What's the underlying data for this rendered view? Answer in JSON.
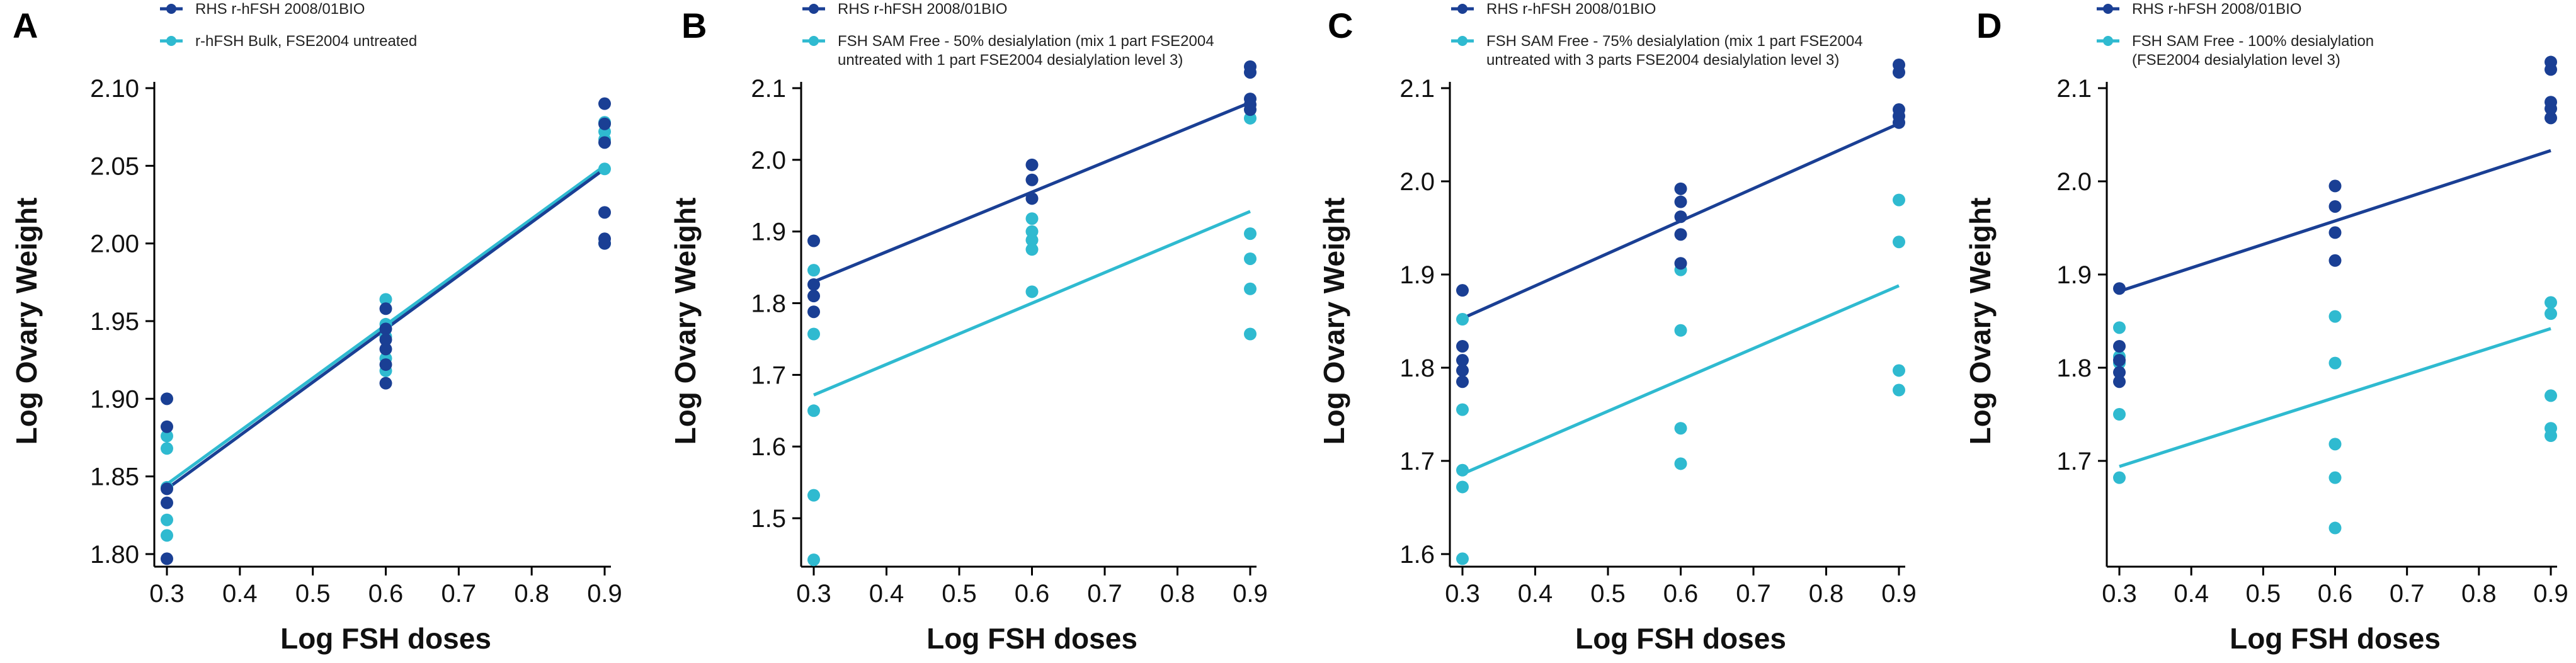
{
  "colors": {
    "rhs": "#1a3f94",
    "test": "#2fbad0"
  },
  "chart_data": [
    {
      "panel": "A",
      "type": "scatter",
      "xlabel": "Log FSH doses",
      "ylabel": "Log Ovary Weight",
      "xlim": [
        0.3,
        0.9
      ],
      "ylim": [
        1.8,
        2.1
      ],
      "xticks": [
        "0.3",
        "0.4",
        "0.5",
        "0.6",
        "0.7",
        "0.8",
        "0.9"
      ],
      "yticks": [
        "1.80",
        "1.85",
        "1.90",
        "1.95",
        "2.00",
        "2.05",
        "2.10"
      ],
      "legend": [
        "RHS r-hFSH 2008/01BIO",
        "r-hFSH Bulk, FSE2004 untreated"
      ],
      "series": [
        {
          "name": "RHS r-hFSH 2008/01BIO",
          "points": [
            [
              0.3,
              1.9
            ],
            [
              0.3,
              1.882
            ],
            [
              0.3,
              1.842
            ],
            [
              0.3,
              1.833
            ],
            [
              0.3,
              1.797
            ],
            [
              0.6,
              1.958
            ],
            [
              0.6,
              1.945
            ],
            [
              0.6,
              1.938
            ],
            [
              0.6,
              1.932
            ],
            [
              0.6,
              1.922
            ],
            [
              0.6,
              1.91
            ],
            [
              0.9,
              2.09
            ],
            [
              0.9,
              2.077
            ],
            [
              0.9,
              2.065
            ],
            [
              0.9,
              2.02
            ],
            [
              0.9,
              2.003
            ],
            [
              0.9,
              2.0
            ]
          ],
          "fit": [
            [
              0.3,
              1.842
            ],
            [
              0.9,
              2.048
            ]
          ]
        },
        {
          "name": "r-hFSH Bulk, FSE2004 untreated",
          "points": [
            [
              0.3,
              1.876
            ],
            [
              0.3,
              1.868
            ],
            [
              0.3,
              1.843
            ],
            [
              0.3,
              1.822
            ],
            [
              0.3,
              1.812
            ],
            [
              0.6,
              1.964
            ],
            [
              0.6,
              1.948
            ],
            [
              0.6,
              1.94
            ],
            [
              0.6,
              1.926
            ],
            [
              0.6,
              1.918
            ],
            [
              0.9,
              2.078
            ],
            [
              0.9,
              2.072
            ],
            [
              0.9,
              2.067
            ],
            [
              0.9,
              2.048
            ],
            [
              0.9,
              2.0
            ]
          ],
          "fit": [
            [
              0.3,
              1.845
            ],
            [
              0.9,
              2.05
            ]
          ]
        }
      ]
    },
    {
      "panel": "B",
      "type": "scatter",
      "xlabel": "Log FSH doses",
      "ylabel": "Log Ovary Weight",
      "xlim": [
        0.3,
        0.9
      ],
      "ylim": [
        1.45,
        2.1
      ],
      "xticks": [
        "0.3",
        "0.4",
        "0.5",
        "0.6",
        "0.7",
        "0.8",
        "0.9"
      ],
      "yticks": [
        "1.5",
        "1.6",
        "1.7",
        "1.8",
        "1.9",
        "2.0",
        "2.1"
      ],
      "legend": [
        "RHS r-hFSH 2008/01BIO",
        "FSH SAM Free - 50% desialylation (mix 1 part FSE2004",
        "untreated with 1 part FSE2004 desialylation level 3)"
      ],
      "series": [
        {
          "name": "RHS r-hFSH 2008/01BIO",
          "points": [
            [
              0.3,
              1.887
            ],
            [
              0.3,
              1.826
            ],
            [
              0.3,
              1.81
            ],
            [
              0.3,
              1.788
            ],
            [
              0.6,
              1.993
            ],
            [
              0.6,
              1.972
            ],
            [
              0.6,
              1.946
            ],
            [
              0.9,
              2.13
            ],
            [
              0.9,
              2.122
            ],
            [
              0.9,
              2.085
            ],
            [
              0.9,
              2.077
            ],
            [
              0.9,
              2.07
            ]
          ],
          "fit": [
            [
              0.3,
              1.83
            ],
            [
              0.9,
              2.08
            ]
          ]
        },
        {
          "name": "FSH SAM Free - 50% desialylation",
          "points": [
            [
              0.3,
              1.846
            ],
            [
              0.3,
              1.757
            ],
            [
              0.3,
              1.65
            ],
            [
              0.3,
              1.532
            ],
            [
              0.3,
              1.442
            ],
            [
              0.6,
              1.918
            ],
            [
              0.6,
              1.9
            ],
            [
              0.6,
              1.888
            ],
            [
              0.6,
              1.875
            ],
            [
              0.6,
              1.816
            ],
            [
              0.9,
              2.058
            ],
            [
              0.9,
              1.897
            ],
            [
              0.9,
              1.862
            ],
            [
              0.9,
              1.82
            ],
            [
              0.9,
              1.757
            ]
          ],
          "fit": [
            [
              0.3,
              1.672
            ],
            [
              0.9,
              1.928
            ]
          ]
        }
      ]
    },
    {
      "panel": "C",
      "type": "scatter",
      "xlabel": "Log FSH doses",
      "ylabel": "Log Ovary Weight",
      "xlim": [
        0.3,
        0.9
      ],
      "ylim": [
        1.6,
        2.1
      ],
      "xticks": [
        "0.3",
        "0.4",
        "0.5",
        "0.6",
        "0.7",
        "0.8",
        "0.9"
      ],
      "yticks": [
        "1.6",
        "1.7",
        "1.8",
        "1.9",
        "2.0",
        "2.1"
      ],
      "legend": [
        "RHS r-hFSH 2008/01BIO",
        "FSH SAM Free - 75% desialylation (mix 1 part FSE2004",
        "untreated with 3 parts FSE2004 desialylation level 3)"
      ],
      "series": [
        {
          "name": "RHS r-hFSH 2008/01BIO",
          "points": [
            [
              0.3,
              1.883
            ],
            [
              0.3,
              1.823
            ],
            [
              0.3,
              1.808
            ],
            [
              0.3,
              1.797
            ],
            [
              0.3,
              1.785
            ],
            [
              0.6,
              1.992
            ],
            [
              0.6,
              1.978
            ],
            [
              0.6,
              1.962
            ],
            [
              0.6,
              1.943
            ],
            [
              0.6,
              1.912
            ],
            [
              0.9,
              2.125
            ],
            [
              0.9,
              2.117
            ],
            [
              0.9,
              2.077
            ],
            [
              0.9,
              2.07
            ],
            [
              0.9,
              2.063
            ]
          ],
          "fit": [
            [
              0.3,
              1.853
            ],
            [
              0.9,
              2.062
            ]
          ]
        },
        {
          "name": "FSH SAM Free - 75% desialylation",
          "points": [
            [
              0.3,
              1.852
            ],
            [
              0.3,
              1.755
            ],
            [
              0.3,
              1.69
            ],
            [
              0.3,
              1.672
            ],
            [
              0.3,
              1.595
            ],
            [
              0.6,
              1.905
            ],
            [
              0.6,
              1.84
            ],
            [
              0.6,
              1.735
            ],
            [
              0.6,
              1.697
            ],
            [
              0.9,
              1.98
            ],
            [
              0.9,
              1.935
            ],
            [
              0.9,
              1.797
            ],
            [
              0.9,
              1.776
            ]
          ],
          "fit": [
            [
              0.3,
              1.686
            ],
            [
              0.9,
              1.888
            ]
          ]
        }
      ]
    },
    {
      "panel": "D",
      "type": "scatter",
      "xlabel": "Log FSH doses",
      "ylabel": "Log Ovary Weight",
      "xlim": [
        0.3,
        0.9
      ],
      "ylim": [
        1.6,
        2.1
      ],
      "xticks": [
        "0.3",
        "0.4",
        "0.5",
        "0.6",
        "0.7",
        "0.8",
        "0.9"
      ],
      "yticks": [
        "1.7",
        "1.8",
        "1.9",
        "2.0",
        "2.1"
      ],
      "legend": [
        "RHS r-hFSH 2008/01BIO",
        "FSH SAM Free - 100% desialylation",
        "(FSE2004 desialylation level 3)"
      ],
      "series": [
        {
          "name": "RHS r-hFSH 2008/01BIO",
          "points": [
            [
              0.3,
              1.885
            ],
            [
              0.3,
              1.823
            ],
            [
              0.3,
              1.808
            ],
            [
              0.3,
              1.795
            ],
            [
              0.3,
              1.785
            ],
            [
              0.6,
              1.995
            ],
            [
              0.6,
              1.973
            ],
            [
              0.6,
              1.945
            ],
            [
              0.6,
              1.915
            ],
            [
              0.9,
              2.128
            ],
            [
              0.9,
              2.12
            ],
            [
              0.9,
              2.085
            ],
            [
              0.9,
              2.078
            ],
            [
              0.9,
              2.068
            ]
          ],
          "fit": [
            [
              0.3,
              1.882
            ],
            [
              0.9,
              2.033
            ]
          ]
        },
        {
          "name": "FSH SAM Free - 100% desialylation",
          "points": [
            [
              0.3,
              1.843
            ],
            [
              0.3,
              1.812
            ],
            [
              0.3,
              1.805
            ],
            [
              0.3,
              1.75
            ],
            [
              0.3,
              1.682
            ],
            [
              0.6,
              1.855
            ],
            [
              0.6,
              1.805
            ],
            [
              0.6,
              1.718
            ],
            [
              0.6,
              1.682
            ],
            [
              0.6,
              1.628
            ],
            [
              0.9,
              1.87
            ],
            [
              0.9,
              1.858
            ],
            [
              0.9,
              1.77
            ],
            [
              0.9,
              1.735
            ],
            [
              0.9,
              1.727
            ]
          ],
          "fit": [
            [
              0.3,
              1.694
            ],
            [
              0.9,
              1.842
            ]
          ]
        }
      ]
    }
  ]
}
